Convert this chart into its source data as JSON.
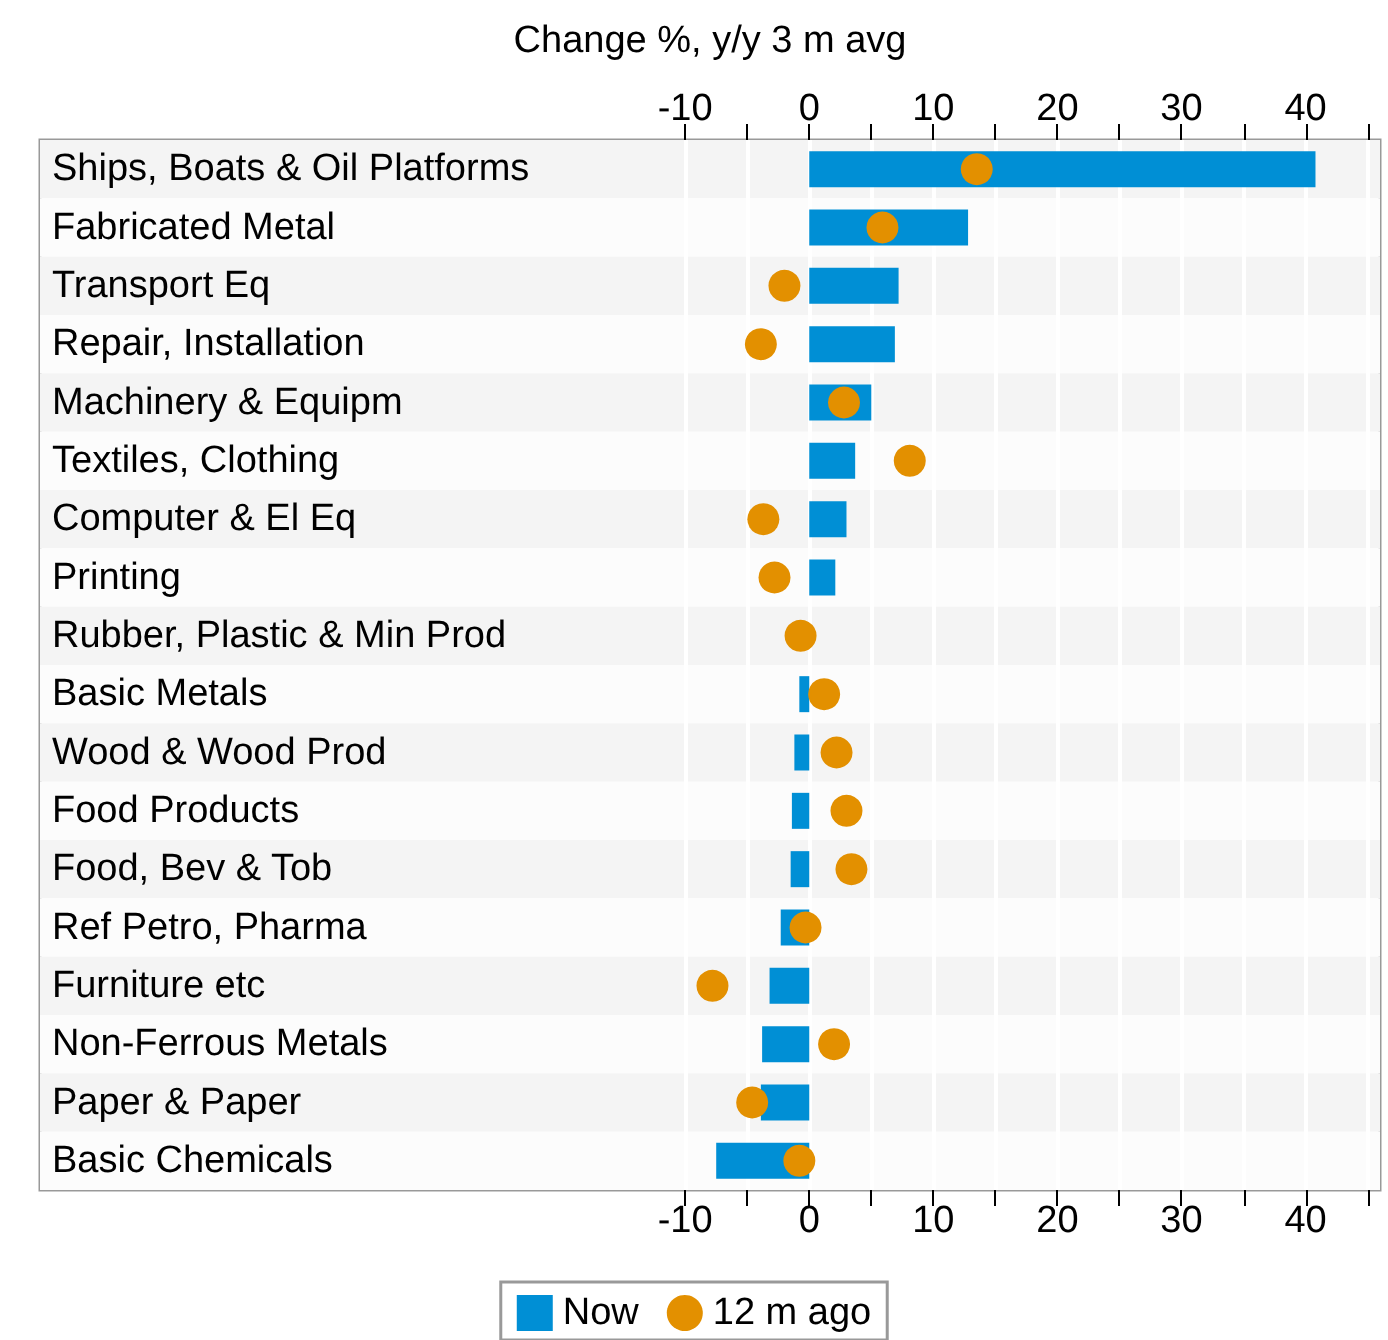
{
  "chart_data": {
    "type": "bar",
    "orientation": "horizontal",
    "x2label": "Change %, y/y 3 m avg",
    "categories": [
      "Ships, Boats & Oil Platforms",
      "Fabricated Metal",
      "Transport Eq",
      "Repair, Installation",
      "Machinery & Equipm",
      "Textiles, Clothing",
      "Computer & El Eq",
      "Printing",
      "Rubber, Plastic & Min Prod",
      "Basic Metals",
      "Wood & Wood Prod",
      "Food Products",
      "Food, Bev & Tob",
      "Ref Petro, Pharma",
      "Furniture etc",
      "Non-Ferrous Metals",
      "Paper & Paper",
      "Basic Chemicals"
    ],
    "series": [
      {
        "name": "Now",
        "type": "bar",
        "color": "#008fd5",
        "values": [
          40.8,
          12.8,
          7.2,
          6.9,
          5.0,
          3.7,
          3.0,
          2.1,
          null,
          -0.8,
          -1.2,
          -1.4,
          -1.5,
          -2.3,
          -3.2,
          -3.8,
          -3.9,
          -7.5
        ]
      },
      {
        "name": "12 m ago",
        "type": "scatter",
        "marker": "circle",
        "color": "#e39000",
        "values": [
          13.5,
          5.9,
          -2.0,
          -3.9,
          2.8,
          8.1,
          -3.7,
          -2.8,
          -0.7,
          1.2,
          2.2,
          3.0,
          3.4,
          -0.3,
          -7.8,
          2.0,
          -4.6,
          -0.8
        ]
      }
    ],
    "xlim": [
      -62,
      46
    ],
    "xticks": [
      -10,
      {
        "value": -5,
        "label": null
      },
      0,
      {
        "value": 5,
        "label": null
      },
      10,
      {
        "value": 15,
        "label": null
      },
      20,
      {
        "value": 25,
        "label": null
      },
      30,
      {
        "value": 35,
        "label": null
      },
      40,
      {
        "value": 45,
        "label": null
      }
    ],
    "x2lim": [
      -62,
      46
    ],
    "x2ticks": [
      -10,
      {
        "value": -5,
        "label": null
      },
      0,
      {
        "value": 5,
        "label": null
      },
      10,
      {
        "value": 15,
        "label": null
      },
      20,
      {
        "value": 25,
        "label": null
      },
      30,
      {
        "value": 35,
        "label": null
      },
      40,
      {
        "value": 45,
        "label": null
      }
    ],
    "grid": "x",
    "legend": "bottom"
  }
}
